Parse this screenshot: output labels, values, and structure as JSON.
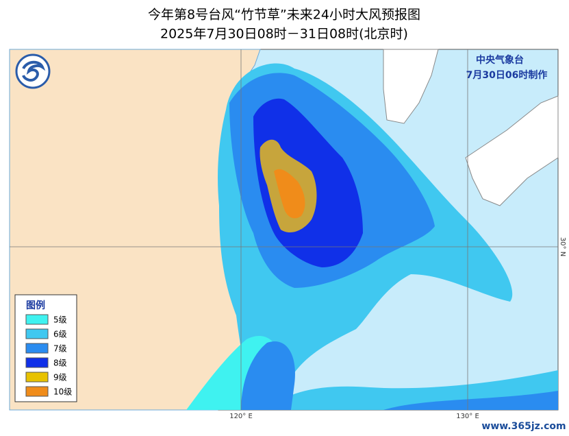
{
  "header": {
    "title": "今年第8号台风“竹节草”未来24小时大风预报图",
    "subtitle": "2025年7月30日08时－31日08时(北京时)"
  },
  "issuer": {
    "name": "中央气象台",
    "date": "7月30日06时制作"
  },
  "legend": {
    "title": "图例",
    "items": [
      {
        "label": "5级",
        "color": "#3ff2f0"
      },
      {
        "label": "6级",
        "color": "#40c8f0"
      },
      {
        "label": "7级",
        "color": "#2a8cf0"
      },
      {
        "label": "8级",
        "color": "#1030e8"
      },
      {
        "label": "9级",
        "color": "#e8c200"
      },
      {
        "label": "10级",
        "color": "#f08c1a"
      }
    ]
  },
  "axes": {
    "lon": [
      "120° E",
      "130° E"
    ],
    "lat": [
      "30° N"
    ]
  },
  "watermark": "www.365jz.com"
}
